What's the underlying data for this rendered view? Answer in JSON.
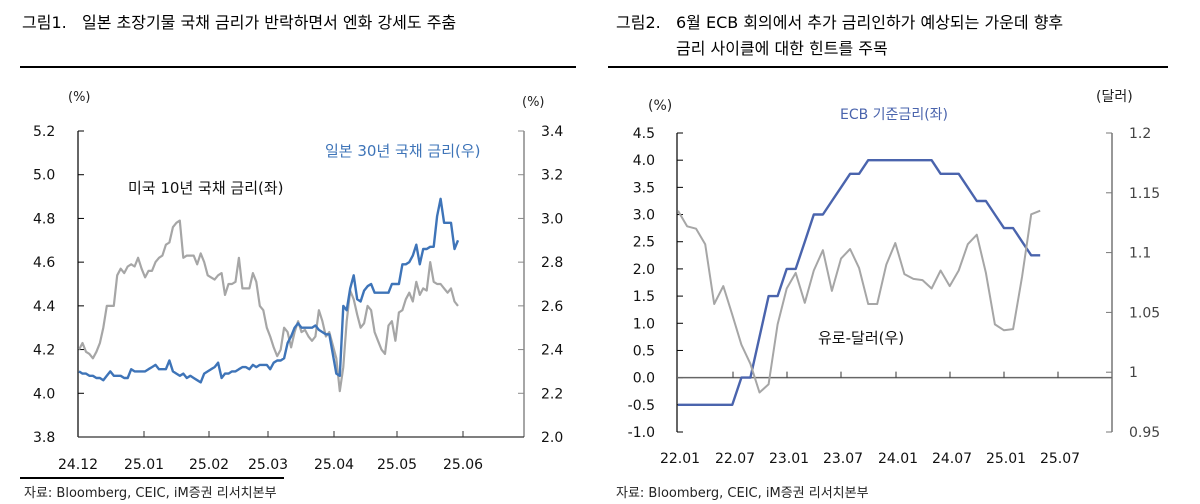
{
  "figure1": {
    "title_prefix": "그림1.",
    "title": "일본 초장기물 국채 금리가 반락하면서 엔화 강세도 주춤",
    "source": "자료: Bloomberg, CEIC, iM증권 리서치본부"
  },
  "figure2": {
    "title_prefix": "그림2.",
    "title_line1": "6월 ECB 회의에서 추가 금리인하가 예상되는 가운데 향후",
    "title_line2": "금리 사이클에 대한 힌트를 주목",
    "source": "자료: Bloomberg, CEIC, iM증권 리서치본부"
  },
  "chart_data": [
    {
      "type": "line",
      "title": "일본 초장기물 국채 금리가 반락하면서 엔화 강세도 주춤",
      "left_axis": {
        "unit_label": "(%)",
        "ylim": [
          3.8,
          5.2
        ],
        "ticks": [
          "5.2",
          "5.0",
          "4.8",
          "4.6",
          "4.4",
          "4.2",
          "4.0",
          "3.8"
        ]
      },
      "right_axis": {
        "unit_label": "(%)",
        "ylim": [
          2.0,
          3.4
        ],
        "ticks": [
          "3.4",
          "3.2",
          "3.0",
          "2.8",
          "2.6",
          "2.4",
          "2.2",
          "2.0"
        ]
      },
      "x_ticks": [
        "24.12",
        "25.01",
        "25.02",
        "25.03",
        "25.04",
        "25.05",
        "25.06"
      ],
      "grid": false,
      "series": [
        {
          "name": "미국 10년 국채 금리(좌)",
          "axis": "left",
          "color": "#a6a6a6",
          "values": [
            4.2,
            4.23,
            4.19,
            4.18,
            4.16,
            4.19,
            4.23,
            4.3,
            4.4,
            4.4,
            4.4,
            4.54,
            4.57,
            4.55,
            4.58,
            4.59,
            4.58,
            4.62,
            4.57,
            4.53,
            4.56,
            4.56,
            4.6,
            4.62,
            4.63,
            4.68,
            4.69,
            4.76,
            4.78,
            4.79,
            4.62,
            4.63,
            4.63,
            4.63,
            4.59,
            4.64,
            4.6,
            4.54,
            4.53,
            4.52,
            4.54,
            4.55,
            4.45,
            4.5,
            4.5,
            4.51,
            4.62,
            4.48,
            4.48,
            4.48,
            4.55,
            4.51,
            4.4,
            4.38,
            4.3,
            4.26,
            4.21,
            4.17,
            4.2,
            4.3,
            4.28,
            4.21,
            4.28,
            4.33,
            4.28,
            4.29,
            4.26,
            4.24,
            4.26,
            4.38,
            4.33,
            4.26,
            4.28,
            4.22,
            4.16,
            4.01,
            4.12,
            4.33,
            4.47,
            4.43,
            4.36,
            4.3,
            4.32,
            4.4,
            4.38,
            4.28,
            4.24,
            4.2,
            4.18,
            4.31,
            4.33,
            4.24,
            4.37,
            4.38,
            4.43,
            4.46,
            4.42,
            4.51,
            4.45,
            4.48,
            4.47,
            4.6,
            4.51,
            4.5,
            4.5,
            4.48,
            4.46,
            4.48,
            4.42,
            4.4
          ],
          "x_range": [
            "24.12",
            "25.05 late"
          ]
        },
        {
          "name": "일본 30년 국채 금리(우)",
          "axis": "right",
          "color": "#3e74b8",
          "values": [
            2.3,
            2.29,
            2.29,
            2.28,
            2.28,
            2.27,
            2.27,
            2.26,
            2.28,
            2.3,
            2.28,
            2.28,
            2.28,
            2.27,
            2.27,
            2.31,
            2.3,
            2.3,
            2.3,
            2.3,
            2.31,
            2.32,
            2.33,
            2.31,
            2.31,
            2.31,
            2.35,
            2.3,
            2.29,
            2.28,
            2.29,
            2.27,
            2.28,
            2.27,
            2.26,
            2.25,
            2.29,
            2.3,
            2.31,
            2.32,
            2.34,
            2.27,
            2.29,
            2.29,
            2.3,
            2.3,
            2.31,
            2.32,
            2.32,
            2.31,
            2.33,
            2.32,
            2.33,
            2.33,
            2.33,
            2.31,
            2.34,
            2.35,
            2.35,
            2.36,
            2.43,
            2.46,
            2.5,
            2.52,
            2.5,
            2.5,
            2.5,
            2.5,
            2.51,
            2.49,
            2.48,
            2.47,
            2.47,
            2.38,
            2.29,
            2.28,
            2.6,
            2.58,
            2.68,
            2.74,
            2.63,
            2.62,
            2.67,
            2.69,
            2.7,
            2.66,
            2.66,
            2.66,
            2.66,
            2.66,
            2.7,
            2.7,
            2.7,
            2.79,
            2.79,
            2.8,
            2.83,
            2.88,
            2.79,
            2.86,
            2.86,
            2.87,
            2.87,
            3.01,
            3.09,
            2.98,
            2.98,
            2.98,
            2.86,
            2.9
          ],
          "x_range": [
            "24.12",
            "25.05 late"
          ]
        }
      ],
      "annotations": [
        "미국 10년 국채 금리(좌)",
        "일본 30년 국채 금리(우)"
      ]
    },
    {
      "type": "line",
      "title": "6월 ECB 회의에서 추가 금리인하가 예상되는 가운데 향후 금리 사이클에 대한 힌트를 주목",
      "left_axis": {
        "unit_label": "(%)",
        "ylim": [
          -1.0,
          4.5
        ],
        "ticks": [
          "4.5",
          "4.0",
          "3.5",
          "3.0",
          "2.5",
          "2.0",
          "1.5",
          "1.0",
          "0.5",
          "0.0",
          "-0.5",
          "-1.0"
        ]
      },
      "right_axis": {
        "unit_label": "(달러)",
        "ylim": [
          0.95,
          1.2
        ],
        "ticks": [
          "1.2",
          "1.15",
          "1.1",
          "1.05",
          "1",
          "0.95"
        ]
      },
      "x_ticks": [
        "22.01",
        "22.07",
        "23.01",
        "23.07",
        "24.01",
        "24.07",
        "25.01",
        "25.07"
      ],
      "grid": false,
      "series": [
        {
          "name": "ECB 기준금리(좌)",
          "axis": "left",
          "color": "#4a64ad",
          "x_months": [
            "22.01",
            "22.02",
            "22.03",
            "22.04",
            "22.05",
            "22.06",
            "22.07",
            "22.08",
            "22.09",
            "22.10",
            "22.11",
            "22.12",
            "23.01",
            "23.02",
            "23.03",
            "23.04",
            "23.05",
            "23.06",
            "23.07",
            "23.08",
            "23.09",
            "23.10",
            "23.11",
            "23.12",
            "24.01",
            "24.02",
            "24.03",
            "24.04",
            "24.05",
            "24.06",
            "24.07",
            "24.08",
            "24.09",
            "24.10",
            "24.11",
            "24.12",
            "25.01",
            "25.02",
            "25.03",
            "25.04",
            "25.05"
          ],
          "values": [
            -0.5,
            -0.5,
            -0.5,
            -0.5,
            -0.5,
            -0.5,
            -0.5,
            0.0,
            0.0,
            0.75,
            1.5,
            1.5,
            2.0,
            2.0,
            2.5,
            3.0,
            3.0,
            3.25,
            3.5,
            3.75,
            3.75,
            4.0,
            4.0,
            4.0,
            4.0,
            4.0,
            4.0,
            4.0,
            4.0,
            3.75,
            3.75,
            3.75,
            3.5,
            3.25,
            3.25,
            3.0,
            2.75,
            2.75,
            2.5,
            2.25,
            2.25
          ]
        },
        {
          "name": "유로-달러(우)",
          "axis": "right",
          "color": "#a6a6a6",
          "x_months": [
            "22.01",
            "22.02",
            "22.03",
            "22.04",
            "22.05",
            "22.06",
            "22.07",
            "22.08",
            "22.09",
            "22.10",
            "22.11",
            "22.12",
            "23.01",
            "23.02",
            "23.03",
            "23.04",
            "23.05",
            "23.06",
            "23.07",
            "23.08",
            "23.09",
            "23.10",
            "23.11",
            "23.12",
            "24.01",
            "24.02",
            "24.03",
            "24.04",
            "24.05",
            "24.06",
            "24.07",
            "24.08",
            "24.09",
            "24.10",
            "24.11",
            "24.12",
            "25.01",
            "25.02",
            "25.03",
            "25.04",
            "25.05"
          ],
          "values": [
            1.135,
            1.122,
            1.12,
            1.107,
            1.057,
            1.072,
            1.048,
            1.023,
            1.007,
            0.983,
            0.99,
            1.04,
            1.07,
            1.083,
            1.058,
            1.085,
            1.102,
            1.068,
            1.095,
            1.103,
            1.087,
            1.057,
            1.057,
            1.09,
            1.108,
            1.082,
            1.078,
            1.077,
            1.07,
            1.085,
            1.072,
            1.085,
            1.107,
            1.115,
            1.083,
            1.04,
            1.035,
            1.036,
            1.08,
            1.132,
            1.135
          ]
        }
      ],
      "annotations": [
        "ECB 기준금리(좌)",
        "유로-달러(우)"
      ]
    }
  ]
}
